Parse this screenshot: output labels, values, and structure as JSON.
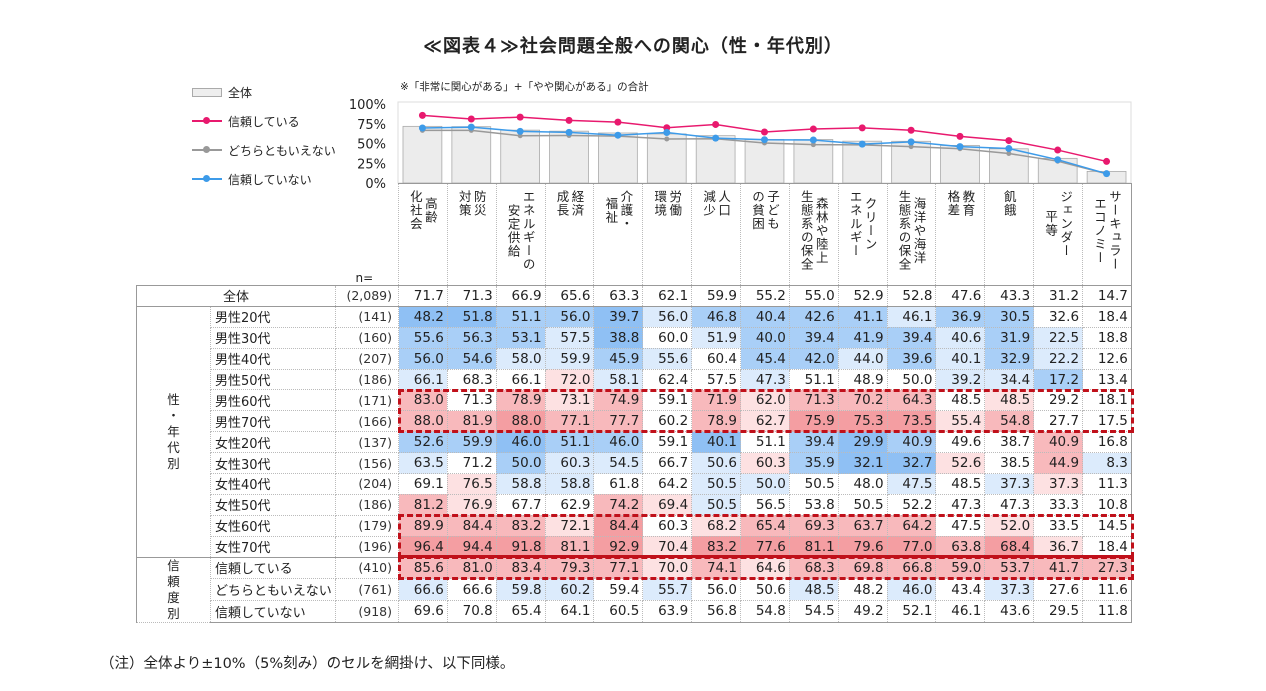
{
  "title": "≪図表４≫社会問題全般への関心（性・年代別）",
  "note": "※「非常に関心がある」+「やや関心がある」の合計",
  "footnote": "（注）全体より±10%（5%刻み）のセルを網掛け、以下同様。",
  "n_label": "n=",
  "legend": [
    {
      "label": "全体",
      "kind": "bar",
      "color": "#eeeeee"
    },
    {
      "label": "信頼している",
      "kind": "line",
      "color": "#e8196e"
    },
    {
      "label": "どちらともいえない",
      "kind": "line",
      "color": "#999999"
    },
    {
      "label": "信頼していない",
      "kind": "line",
      "color": "#3d9be9"
    }
  ],
  "columns": [
    "高齢\n化社会",
    "防災\n対策",
    "エネルギーの\n安定供給",
    "経済\n成長",
    "介護・\n福祉",
    "労働\n環境",
    "人口\n減少",
    "子ども\nの貧困",
    "森林や陸上\n生態系の保全",
    "クリーン\nエネルギー",
    "海洋や海洋\n生態系の保全",
    "教育\n格差",
    "飢餓",
    "ジェンダー\n平等",
    "サーキュラー\nエコノミー"
  ],
  "total": {
    "label": "全体",
    "n": "(2,089)",
    "values": [
      71.7,
      71.3,
      66.9,
      65.6,
      63.3,
      62.1,
      59.9,
      55.2,
      55.0,
      52.9,
      52.8,
      47.6,
      43.3,
      31.2,
      14.7
    ]
  },
  "groups": [
    {
      "label": "性\n・\n年\n代\n別",
      "rows": [
        {
          "label": "男性20代",
          "n": "(141)",
          "values": [
            48.2,
            51.8,
            51.1,
            56.0,
            39.7,
            56.0,
            46.8,
            40.4,
            42.6,
            41.1,
            46.1,
            36.9,
            30.5,
            32.6,
            18.4
          ]
        },
        {
          "label": "男性30代",
          "n": "(160)",
          "values": [
            55.6,
            56.3,
            53.1,
            57.5,
            38.8,
            60.0,
            51.9,
            40.0,
            39.4,
            41.9,
            39.4,
            40.6,
            31.9,
            22.5,
            18.8
          ]
        },
        {
          "label": "男性40代",
          "n": "(207)",
          "values": [
            56.0,
            54.6,
            58.0,
            59.9,
            45.9,
            55.6,
            60.4,
            45.4,
            42.0,
            44.0,
            39.6,
            40.1,
            32.9,
            22.2,
            12.6
          ]
        },
        {
          "label": "男性50代",
          "n": "(186)",
          "values": [
            66.1,
            68.3,
            66.1,
            72.0,
            58.1,
            62.4,
            57.5,
            47.3,
            51.1,
            48.9,
            50.0,
            39.2,
            34.4,
            17.2,
            13.4
          ]
        },
        {
          "label": "男性60代",
          "n": "(171)",
          "values": [
            83.0,
            71.3,
            78.9,
            73.1,
            74.9,
            59.1,
            71.9,
            62.0,
            71.3,
            70.2,
            64.3,
            48.5,
            48.5,
            29.2,
            18.1
          ]
        },
        {
          "label": "男性70代",
          "n": "(166)",
          "values": [
            88.0,
            81.9,
            88.0,
            77.1,
            77.7,
            60.2,
            78.9,
            62.7,
            75.9,
            75.3,
            73.5,
            55.4,
            54.8,
            27.7,
            17.5
          ]
        },
        {
          "label": "女性20代",
          "n": "(137)",
          "values": [
            52.6,
            59.9,
            46.0,
            51.1,
            46.0,
            59.1,
            40.1,
            51.1,
            39.4,
            29.9,
            40.9,
            49.6,
            38.7,
            40.9,
            16.8
          ]
        },
        {
          "label": "女性30代",
          "n": "(156)",
          "values": [
            63.5,
            71.2,
            50.0,
            60.3,
            54.5,
            66.7,
            50.6,
            60.3,
            35.9,
            32.1,
            32.7,
            52.6,
            38.5,
            44.9,
            8.3
          ]
        },
        {
          "label": "女性40代",
          "n": "(204)",
          "values": [
            69.1,
            76.5,
            58.8,
            58.8,
            61.8,
            64.2,
            50.5,
            50.0,
            50.5,
            48.0,
            47.5,
            48.5,
            37.3,
            37.3,
            11.3
          ]
        },
        {
          "label": "女性50代",
          "n": "(186)",
          "values": [
            81.2,
            76.9,
            67.7,
            62.9,
            74.2,
            69.4,
            50.5,
            56.5,
            53.8,
            50.5,
            52.2,
            47.3,
            47.3,
            33.3,
            10.8
          ]
        },
        {
          "label": "女性60代",
          "n": "(179)",
          "values": [
            89.9,
            84.4,
            83.2,
            72.1,
            84.4,
            60.3,
            68.2,
            65.4,
            69.3,
            63.7,
            64.2,
            47.5,
            52.0,
            33.5,
            14.5
          ]
        },
        {
          "label": "女性70代",
          "n": "(196)",
          "values": [
            96.4,
            94.4,
            91.8,
            81.1,
            92.9,
            70.4,
            83.2,
            77.6,
            81.1,
            79.6,
            77.0,
            63.8,
            68.4,
            36.7,
            18.4
          ]
        }
      ]
    },
    {
      "label": "信\n頼\n度\n別",
      "rows": [
        {
          "label": "信頼している",
          "n": "(410)",
          "values": [
            85.6,
            81.0,
            83.4,
            79.3,
            77.1,
            70.0,
            74.1,
            64.6,
            68.3,
            69.8,
            66.8,
            59.0,
            53.7,
            41.7,
            27.3
          ]
        },
        {
          "label": "どちらともいえない",
          "n": "(761)",
          "values": [
            66.6,
            66.6,
            59.8,
            60.2,
            59.4,
            55.7,
            56.0,
            50.6,
            48.5,
            48.2,
            46.0,
            43.4,
            37.3,
            27.6,
            11.6
          ]
        },
        {
          "label": "信頼していない",
          "n": "(918)",
          "values": [
            69.6,
            70.8,
            65.4,
            64.1,
            60.5,
            63.9,
            56.8,
            54.8,
            54.5,
            49.2,
            52.1,
            46.1,
            43.6,
            29.5,
            11.8
          ]
        }
      ]
    }
  ],
  "chart_data": {
    "type": "bar+line",
    "title": "社会問題全般への関心",
    "categories": [
      "高齢化社会",
      "防災対策",
      "エネルギーの安定供給",
      "経済成長",
      "介護・福祉",
      "労働環境",
      "人口減少",
      "子どもの貧困",
      "森林や陸上生態系の保全",
      "クリーンエネルギー",
      "海洋や海洋生態系の保全",
      "教育格差",
      "飢餓",
      "ジェンダー平等",
      "サーキュラーエコノミー"
    ],
    "ylim": [
      0,
      100
    ],
    "yticks": [
      "0%",
      "25%",
      "50%",
      "75%",
      "100%"
    ],
    "legend_position": "left",
    "series": [
      {
        "name": "全体",
        "kind": "bar",
        "color": "#eeeeee",
        "values": [
          71.7,
          71.3,
          66.9,
          65.6,
          63.3,
          62.1,
          59.9,
          55.2,
          55.0,
          52.9,
          52.8,
          47.6,
          43.3,
          31.2,
          14.7
        ]
      },
      {
        "name": "信頼している",
        "kind": "line",
        "color": "#e8196e",
        "values": [
          85.6,
          81.0,
          83.4,
          79.3,
          77.1,
          70.0,
          74.1,
          64.6,
          68.3,
          69.8,
          66.8,
          59.0,
          53.7,
          41.7,
          27.3
        ]
      },
      {
        "name": "どちらともいえない",
        "kind": "line",
        "color": "#999999",
        "values": [
          66.6,
          66.6,
          59.8,
          60.2,
          59.4,
          55.7,
          56.0,
          50.6,
          48.5,
          48.2,
          46.0,
          43.4,
          37.3,
          27.6,
          11.6
        ]
      },
      {
        "name": "信頼していない",
        "kind": "line",
        "color": "#3d9be9",
        "values": [
          69.6,
          70.8,
          65.4,
          64.1,
          60.5,
          63.9,
          56.8,
          54.8,
          54.5,
          49.2,
          52.1,
          46.1,
          43.6,
          29.5,
          11.8
        ]
      }
    ]
  }
}
